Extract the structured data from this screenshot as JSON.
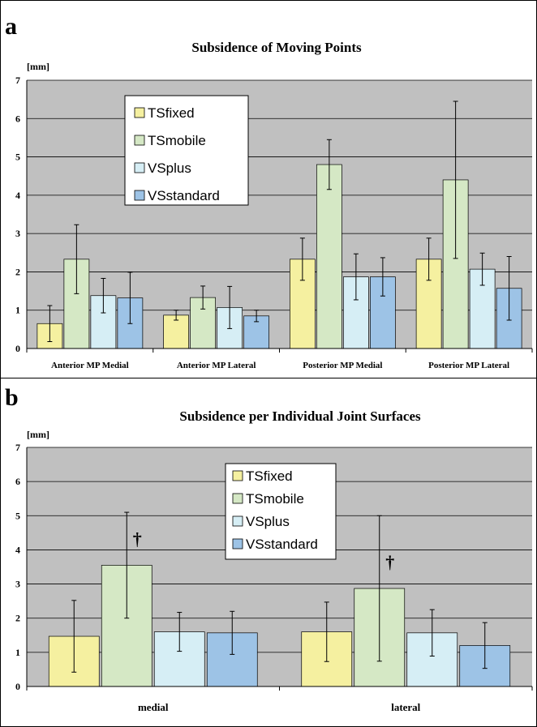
{
  "chart_data": [
    {
      "panel_letter": "a",
      "type": "bar",
      "title": "Subsidence of Moving Points",
      "ylabel": "[mm]",
      "ylim": [
        0,
        7
      ],
      "yticks": [
        "0",
        "1",
        "2",
        "3",
        "4",
        "5",
        "6",
        "7"
      ],
      "grid": true,
      "legend_position": "upper-left",
      "categories": [
        "Anterior MP Medial",
        "Anterior MP Lateral",
        "Posterior MP Medial",
        "Posterior MP Lateral"
      ],
      "series": [
        {
          "name": "TSfixed",
          "color": "#F5F0A0",
          "values": [
            0.65,
            0.87,
            2.33,
            2.33
          ],
          "error": [
            0.47,
            0.13,
            0.55,
            0.55
          ]
        },
        {
          "name": "TSmobile",
          "color": "#D5E8C5",
          "values": [
            2.33,
            1.33,
            4.8,
            4.4
          ],
          "error": [
            0.9,
            0.3,
            0.65,
            2.05
          ]
        },
        {
          "name": "VSplus",
          "color": "#D6EEF5",
          "values": [
            1.38,
            1.07,
            1.87,
            2.07
          ],
          "error": [
            0.45,
            0.55,
            0.6,
            0.42
          ]
        },
        {
          "name": "VSstandard",
          "color": "#9DC3E6",
          "values": [
            1.32,
            0.85,
            1.87,
            1.57
          ],
          "error": [
            0.67,
            0.15,
            0.5,
            0.83
          ]
        }
      ],
      "annotations": []
    },
    {
      "panel_letter": "b",
      "type": "bar",
      "title": "Subsidence per Individual Joint Surfaces",
      "ylabel": "[mm]",
      "ylim": [
        0,
        7
      ],
      "yticks": [
        "0",
        "1",
        "2",
        "3",
        "4",
        "5",
        "6",
        "7"
      ],
      "grid": true,
      "legend_position": "upper-center",
      "categories": [
        "medial",
        "lateral"
      ],
      "series": [
        {
          "name": "TSfixed",
          "color": "#F5F0A0",
          "values": [
            1.47,
            1.6
          ],
          "error": [
            1.05,
            0.87
          ]
        },
        {
          "name": "TSmobile",
          "color": "#D5E8C5",
          "values": [
            3.55,
            2.87
          ],
          "error": [
            1.55,
            2.13
          ]
        },
        {
          "name": "VSplus",
          "color": "#D6EEF5",
          "values": [
            1.6,
            1.57
          ],
          "error": [
            0.57,
            0.68
          ]
        },
        {
          "name": "VSstandard",
          "color": "#9DC3E6",
          "values": [
            1.57,
            1.2
          ],
          "error": [
            0.63,
            0.67
          ]
        }
      ],
      "annotations": [
        {
          "text": "†",
          "category_index": 0,
          "series_index": 1
        },
        {
          "text": "†",
          "category_index": 1,
          "series_index": 1
        }
      ]
    }
  ]
}
